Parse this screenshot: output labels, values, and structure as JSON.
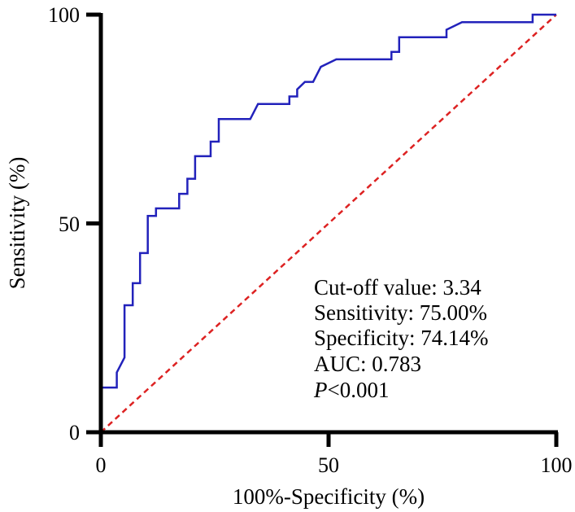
{
  "chart_data": {
    "type": "line",
    "xlabel": "100%-Specificity (%)",
    "ylabel": "Sensitivity (%)",
    "xlim": [
      0,
      100
    ],
    "ylim": [
      0,
      100
    ],
    "x_ticks": [
      "0",
      "50",
      "100"
    ],
    "y_ticks": [
      "0",
      "50",
      "100"
    ],
    "grid": false,
    "colors": {
      "roc": "#2222bb",
      "reference": "#dd2222"
    },
    "series": [
      {
        "style": "solid",
        "points": [
          [
            0,
            0
          ],
          [
            0,
            10.7
          ],
          [
            3.5,
            10.7
          ],
          [
            3.5,
            14.3
          ],
          [
            5.2,
            17.9
          ],
          [
            5.2,
            30.4
          ],
          [
            7,
            30.4
          ],
          [
            7,
            35.7
          ],
          [
            8.6,
            35.7
          ],
          [
            8.6,
            42.9
          ],
          [
            10.3,
            42.9
          ],
          [
            10.3,
            51.8
          ],
          [
            12.1,
            51.8
          ],
          [
            12.1,
            53.6
          ],
          [
            17.2,
            53.6
          ],
          [
            17.2,
            57.1
          ],
          [
            19,
            57.1
          ],
          [
            19,
            60.7
          ],
          [
            20.7,
            60.7
          ],
          [
            20.7,
            66.1
          ],
          [
            24.1,
            66.1
          ],
          [
            24.1,
            69.6
          ],
          [
            25.9,
            69.6
          ],
          [
            25.9,
            75
          ],
          [
            32.8,
            75
          ],
          [
            34.5,
            78.6
          ],
          [
            41.4,
            78.6
          ],
          [
            41.4,
            80.4
          ],
          [
            43.1,
            80.4
          ],
          [
            43.1,
            82.1
          ],
          [
            44.8,
            83.9
          ],
          [
            46.6,
            83.9
          ],
          [
            48.3,
            87.5
          ],
          [
            51.7,
            89.3
          ],
          [
            63.8,
            89.3
          ],
          [
            63.8,
            91.1
          ],
          [
            65.5,
            91.1
          ],
          [
            65.5,
            94.6
          ],
          [
            75.9,
            94.6
          ],
          [
            75.9,
            96.4
          ],
          [
            79.3,
            98.2
          ],
          [
            94.8,
            98.2
          ],
          [
            94.8,
            100
          ],
          [
            100,
            100
          ]
        ]
      },
      {
        "style": "dashed",
        "points": [
          [
            0,
            0
          ],
          [
            100,
            100
          ]
        ]
      }
    ],
    "annotations": {
      "cutoff": "Cut-off value: 3.34",
      "sensitivity": "Sensitivity: 75.00%",
      "specificity": "Specificity: 74.14%",
      "auc": "AUC: 0.783",
      "p_italic": "P",
      "p_rest": "<0.001"
    }
  }
}
